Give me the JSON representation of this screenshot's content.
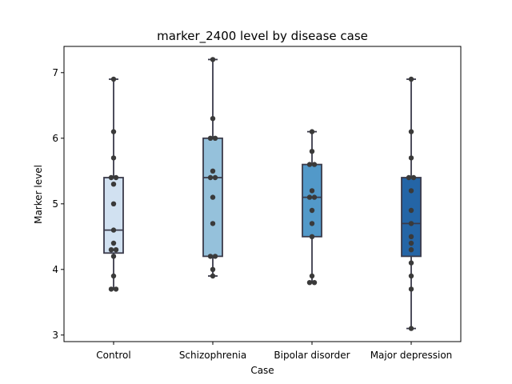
{
  "chart_data": {
    "type": "box",
    "title": "marker_2400 level by disease case",
    "xlabel": "Case",
    "ylabel": "Marker level",
    "ylim": [
      2.9,
      7.4
    ],
    "yticks": [
      3,
      4,
      5,
      6,
      7
    ],
    "categories": [
      "Control",
      "Schizophrenia",
      "Bipolar disorder",
      "Major depression"
    ],
    "box_colors": [
      "#d1e1f1",
      "#95c1db",
      "#5299c9",
      "#2465a6"
    ],
    "edge_color": "#3a3a4a",
    "point_color": "#3a3a3a",
    "grid": false,
    "boxes": [
      {
        "whislo": 3.7,
        "q1": 4.25,
        "med": 4.6,
        "q3": 5.4,
        "whishi": 6.9
      },
      {
        "whislo": 3.9,
        "q1": 4.2,
        "med": 5.4,
        "q3": 6.0,
        "whishi": 7.2
      },
      {
        "whislo": 3.8,
        "q1": 4.5,
        "med": 5.1,
        "q3": 5.6,
        "whishi": 6.1
      },
      {
        "whislo": 3.1,
        "q1": 4.2,
        "med": 4.7,
        "q3": 5.4,
        "whishi": 6.9
      }
    ],
    "points": [
      [
        3.7,
        3.7,
        3.9,
        4.2,
        4.3,
        4.3,
        4.4,
        4.6,
        5.0,
        5.3,
        5.4,
        5.4,
        5.7,
        6.1,
        6.9
      ],
      [
        3.9,
        4.0,
        4.2,
        4.2,
        4.7,
        5.1,
        5.4,
        5.4,
        5.5,
        6.0,
        6.0,
        6.3,
        7.2
      ],
      [
        3.8,
        3.8,
        3.9,
        4.5,
        4.7,
        4.9,
        5.1,
        5.1,
        5.2,
        5.6,
        5.6,
        5.8,
        6.1
      ],
      [
        3.1,
        3.7,
        3.9,
        4.1,
        4.3,
        4.4,
        4.5,
        4.7,
        4.9,
        5.2,
        5.4,
        5.4,
        5.7,
        6.1,
        6.9
      ]
    ]
  }
}
